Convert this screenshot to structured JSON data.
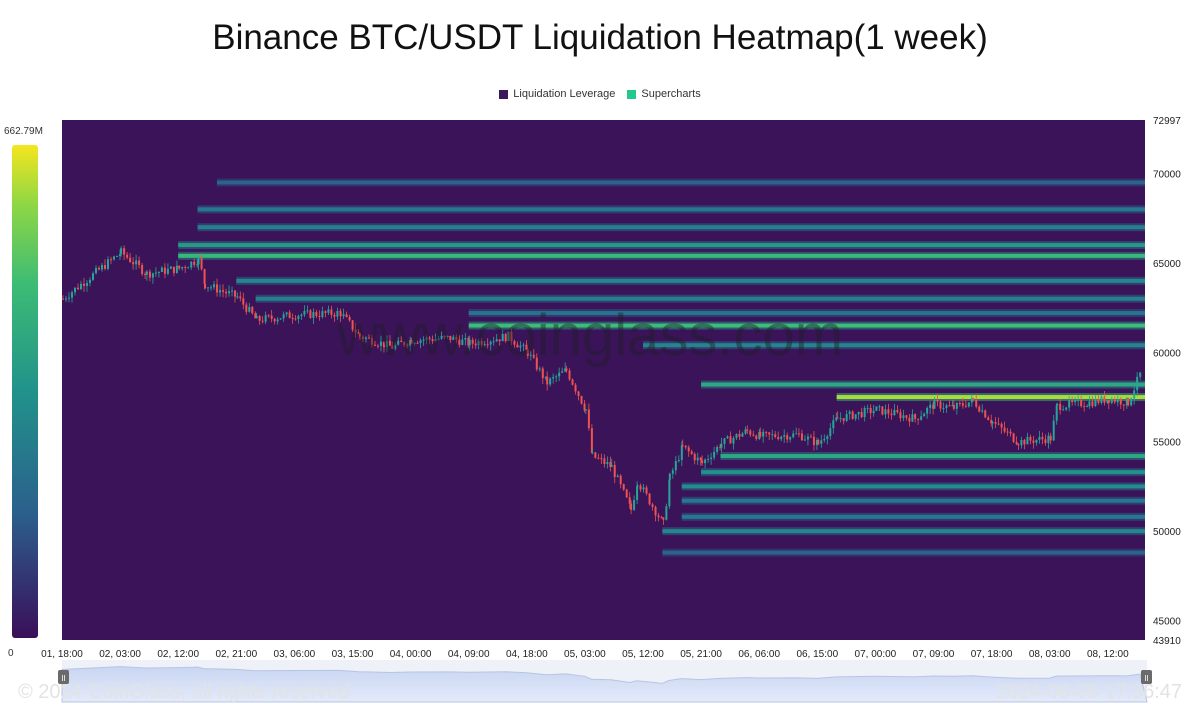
{
  "chart_data": {
    "type": "heatmap",
    "title": "Binance BTC/USDT Liquidation Heatmap(1 week)",
    "legend": [
      {
        "name": "Liquidation Leverage",
        "color": "#3b1a5c"
      },
      {
        "name": "Supercharts",
        "color": "#22c98a"
      }
    ],
    "ylim": [
      43910,
      72997
    ],
    "y_ticks": [
      "72997",
      "70000",
      "65000",
      "60000",
      "55000",
      "50000",
      "45000",
      "43910"
    ],
    "y_tick_values": [
      72997,
      70000,
      65000,
      60000,
      55000,
      50000,
      45000,
      43910
    ],
    "x_ticks": [
      "01, 18:00",
      "02, 03:00",
      "02, 12:00",
      "02, 21:00",
      "03, 06:00",
      "03, 15:00",
      "04, 00:00",
      "04, 09:00",
      "04, 18:00",
      "05, 03:00",
      "05, 12:00",
      "05, 21:00",
      "06, 06:00",
      "06, 15:00",
      "07, 00:00",
      "07, 09:00",
      "07, 18:00",
      "08, 03:00",
      "08, 12:00"
    ],
    "colorscale": {
      "max_label": "662.79M",
      "min_label": "0",
      "colors": [
        "#3a0f5a",
        "#2b5f8c",
        "#21928b",
        "#3dbc74",
        "#8fd744",
        "#f4e61e"
      ]
    },
    "price_path": [
      [
        "01, 18:00",
        63000
      ],
      [
        "02, 03:00",
        65600
      ],
      [
        "02, 07:00",
        64400
      ],
      [
        "02, 12:00",
        64700
      ],
      [
        "02, 15:00",
        65200
      ],
      [
        "02, 16:00",
        63800
      ],
      [
        "02, 21:00",
        63100
      ],
      [
        "03, 00:00",
        61800
      ],
      [
        "03, 06:00",
        62100
      ],
      [
        "03, 13:00",
        62200
      ],
      [
        "03, 16:00",
        60900
      ],
      [
        "03, 21:00",
        60300
      ],
      [
        "04, 00:00",
        60700
      ],
      [
        "04, 06:00",
        60800
      ],
      [
        "04, 09:00",
        60500
      ],
      [
        "04, 15:00",
        60900
      ],
      [
        "04, 18:00",
        60000
      ],
      [
        "04, 21:00",
        58300
      ],
      [
        "05, 00:00",
        59000
      ],
      [
        "05, 03:00",
        56800
      ],
      [
        "05, 04:00",
        54200
      ],
      [
        "05, 07:00",
        53600
      ],
      [
        "05, 10:00",
        51200
      ],
      [
        "05, 11:00",
        52800
      ],
      [
        "05, 15:00",
        50400
      ],
      [
        "05, 16:00",
        53000
      ],
      [
        "05, 18:00",
        54700
      ],
      [
        "05, 21:00",
        53800
      ],
      [
        "06, 00:00",
        54900
      ],
      [
        "06, 04:00",
        55600
      ],
      [
        "06, 06:00",
        55300
      ],
      [
        "06, 12:00",
        55400
      ],
      [
        "06, 15:00",
        54900
      ],
      [
        "06, 18:00",
        56300
      ],
      [
        "07, 00:00",
        56800
      ],
      [
        "07, 06:00",
        56300
      ],
      [
        "07, 09:00",
        57100
      ],
      [
        "07, 12:00",
        56900
      ],
      [
        "07, 15:00",
        57300
      ],
      [
        "07, 18:00",
        56100
      ],
      [
        "07, 22:00",
        55000
      ],
      [
        "08, 03:00",
        55200
      ],
      [
        "08, 04:00",
        57000
      ],
      [
        "08, 09:00",
        57200
      ],
      [
        "08, 12:00",
        57400
      ],
      [
        "08, 15:00",
        57200
      ],
      [
        "08, 17:00",
        58900
      ]
    ],
    "liquidation_bands": [
      {
        "price": 69500,
        "intensity": 0.22,
        "start": "02, 18:00"
      },
      {
        "price": 68000,
        "intensity": 0.3,
        "start": "02, 15:00"
      },
      {
        "price": 67000,
        "intensity": 0.33,
        "start": "02, 15:00"
      },
      {
        "price": 66000,
        "intensity": 0.44,
        "start": "02, 12:00"
      },
      {
        "price": 65400,
        "intensity": 0.58,
        "start": "02, 12:00"
      },
      {
        "price": 64000,
        "intensity": 0.36,
        "start": "02, 21:00"
      },
      {
        "price": 63000,
        "intensity": 0.33,
        "start": "03, 00:00"
      },
      {
        "price": 62200,
        "intensity": 0.28,
        "start": "04, 09:00"
      },
      {
        "price": 61500,
        "intensity": 0.6,
        "start": "04, 09:00"
      },
      {
        "price": 60400,
        "intensity": 0.35,
        "start": "05, 12:00"
      },
      {
        "price": 58200,
        "intensity": 0.5,
        "start": "05, 21:00"
      },
      {
        "price": 57500,
        "intensity": 0.85,
        "start": "06, 18:00"
      },
      {
        "price": 54200,
        "intensity": 0.5,
        "start": "06, 00:00"
      },
      {
        "price": 53300,
        "intensity": 0.4,
        "start": "05, 21:00"
      },
      {
        "price": 52500,
        "intensity": 0.38,
        "start": "05, 18:00"
      },
      {
        "price": 51700,
        "intensity": 0.3,
        "start": "05, 18:00"
      },
      {
        "price": 50800,
        "intensity": 0.3,
        "start": "05, 18:00"
      },
      {
        "price": 50000,
        "intensity": 0.36,
        "start": "05, 15:00"
      },
      {
        "price": 48800,
        "intensity": 0.22,
        "start": "05, 15:00"
      }
    ],
    "watermark": "www.coinglass.com"
  },
  "footer": {
    "copyright": "© 2024 CoinGlass, all rights reserved",
    "timestamp": "2024-08-08 17:36:47"
  },
  "slider": {
    "handle_left": "II",
    "handle_right": "II"
  }
}
